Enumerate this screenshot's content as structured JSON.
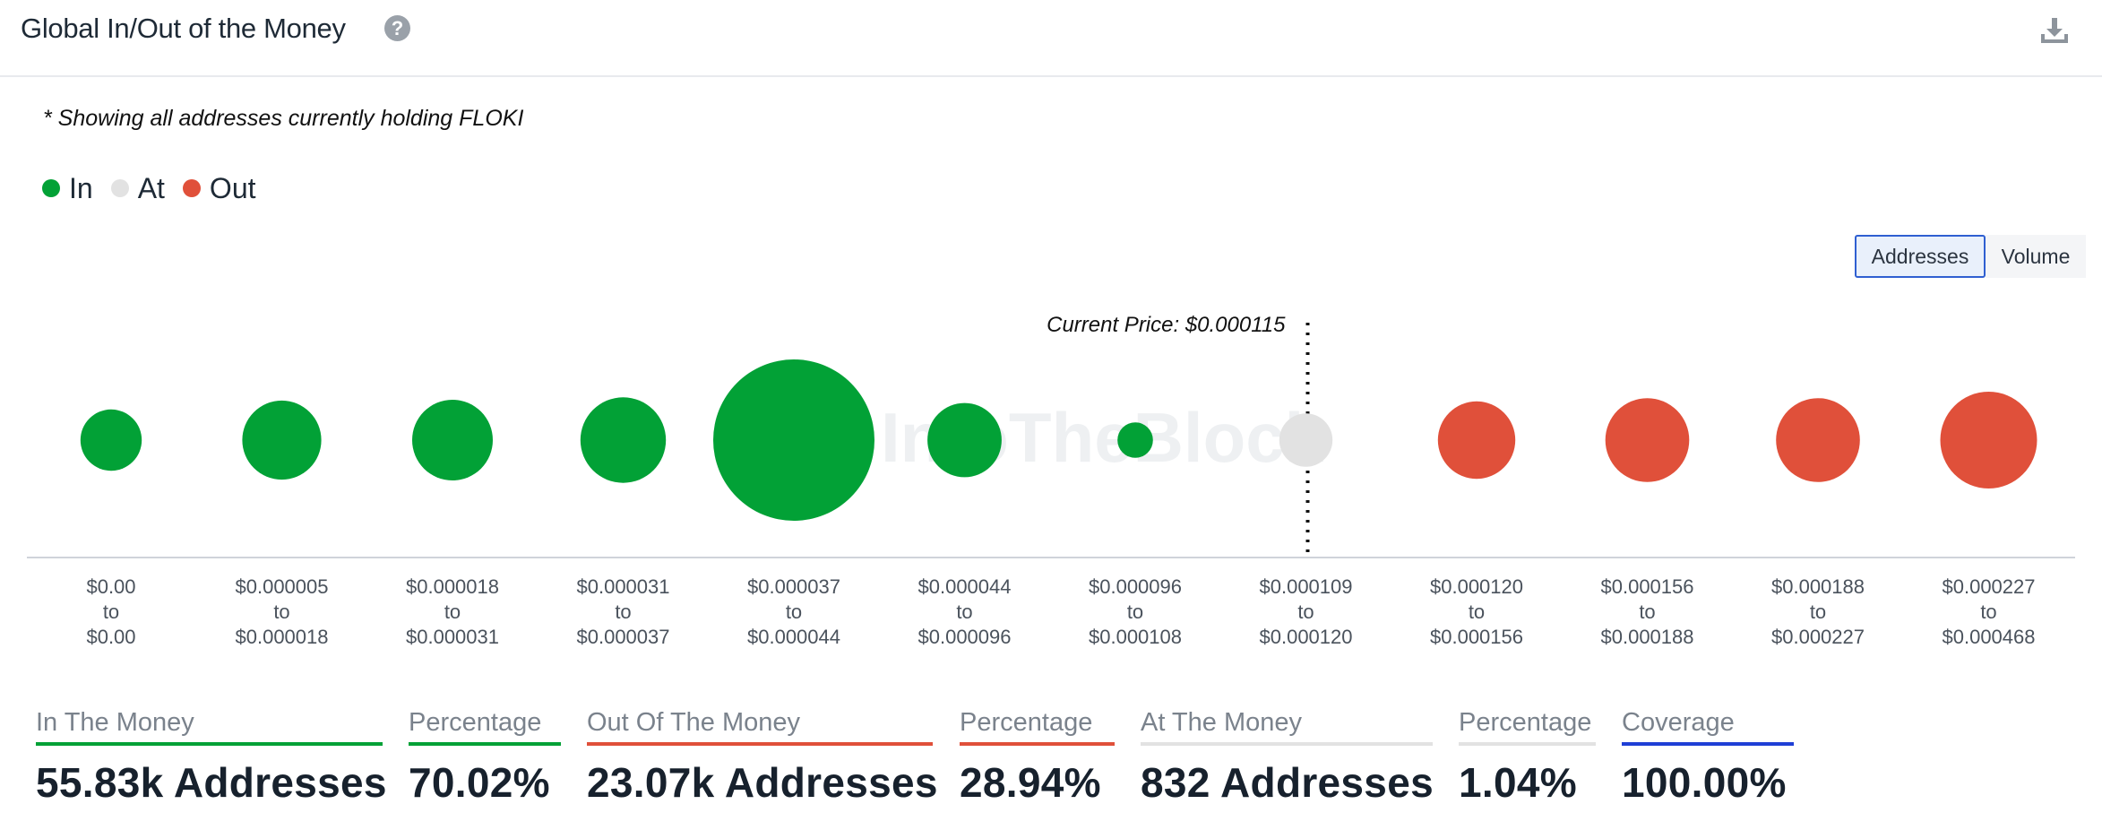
{
  "header": {
    "title": "Global In/Out of the Money",
    "help_icon": "help-circle-icon",
    "download_icon": "download-icon"
  },
  "note": "* Showing all addresses currently holding FLOKI",
  "legend": [
    {
      "label": "In",
      "color": "#02a136"
    },
    {
      "label": "At",
      "color": "#e2e2e2"
    },
    {
      "label": "Out",
      "color": "#e0503a"
    }
  ],
  "toggle": {
    "addresses_label": "Addresses",
    "volume_label": "Volume",
    "active": "Addresses"
  },
  "chart_data": {
    "type": "bubble",
    "current_price_label": "Current Price: $0.000115",
    "watermark": "IntoTheBlock",
    "series_colors": {
      "in": "#02a136",
      "at": "#e2e2e2",
      "out": "#e0503a"
    },
    "bins": [
      {
        "from": "$0.00",
        "to": "$0.00",
        "status": "in",
        "relative_size": 0.38
      },
      {
        "from": "$0.000005",
        "to": "$0.000018",
        "status": "in",
        "relative_size": 0.49
      },
      {
        "from": "$0.000018",
        "to": "$0.000031",
        "status": "in",
        "relative_size": 0.5
      },
      {
        "from": "$0.000031",
        "to": "$0.000037",
        "status": "in",
        "relative_size": 0.53
      },
      {
        "from": "$0.000037",
        "to": "$0.000044",
        "status": "in",
        "relative_size": 1.0
      },
      {
        "from": "$0.000044",
        "to": "$0.000096",
        "status": "in",
        "relative_size": 0.46
      },
      {
        "from": "$0.000096",
        "to": "$0.000108",
        "status": "in",
        "relative_size": 0.22
      },
      {
        "from": "$0.000109",
        "to": "$0.000120",
        "status": "at",
        "relative_size": 0.33
      },
      {
        "from": "$0.000120",
        "to": "$0.000156",
        "status": "out",
        "relative_size": 0.48
      },
      {
        "from": "$0.000156",
        "to": "$0.000188",
        "status": "out",
        "relative_size": 0.52
      },
      {
        "from": "$0.000188",
        "to": "$0.000227",
        "status": "out",
        "relative_size": 0.52
      },
      {
        "from": "$0.000227",
        "to": "$0.000468",
        "status": "out",
        "relative_size": 0.6
      }
    ],
    "range_connector": "to"
  },
  "stats": [
    {
      "label": "In The Money",
      "value": "55.83k Addresses",
      "color": "#02a136"
    },
    {
      "label": "Percentage",
      "value": "70.02%",
      "color": "#02a136"
    },
    {
      "label": "Out Of The Money",
      "value": "23.07k Addresses",
      "color": "#e0503a"
    },
    {
      "label": "Percentage",
      "value": "28.94%",
      "color": "#e0503a"
    },
    {
      "label": "At The Money",
      "value": "832 Addresses",
      "color": "#e2e2e2"
    },
    {
      "label": "Percentage",
      "value": "1.04%",
      "color": "#e2e2e2"
    },
    {
      "label": "Coverage",
      "value": "100.00%",
      "color": "#1f3fd6"
    }
  ]
}
